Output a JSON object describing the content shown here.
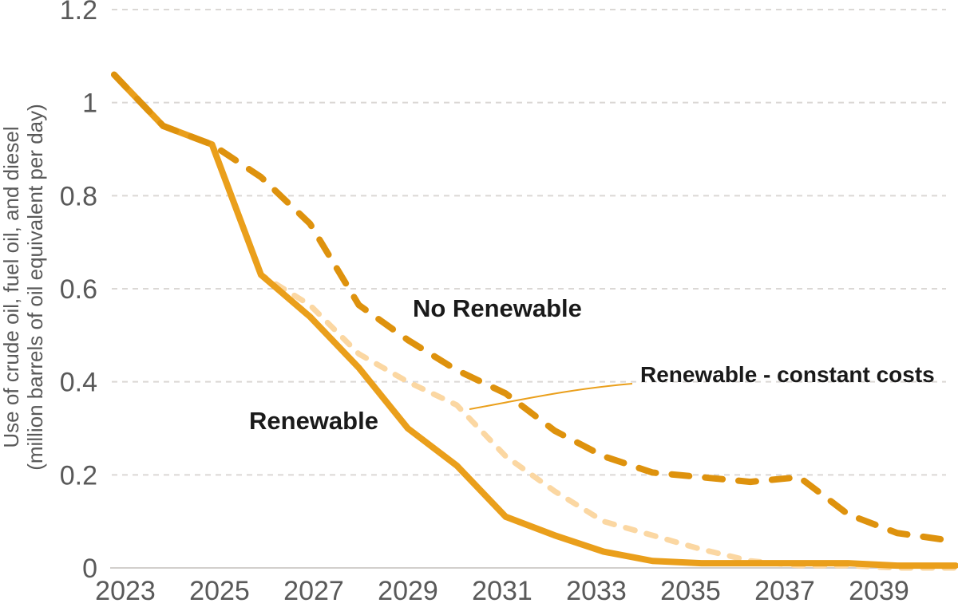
{
  "chart_data": {
    "type": "line",
    "title": "",
    "xlabel": "",
    "ylabel_line1": "Use of crude oil, fuel oil, and diesel",
    "ylabel_line2": "(million barrels of oil equivalent per day)",
    "x": [
      2023,
      2024,
      2025,
      2026,
      2027,
      2028,
      2029,
      2030,
      2031,
      2032,
      2033,
      2034,
      2035,
      2036,
      2037,
      2038,
      2039,
      2040
    ],
    "x_tick_labels": [
      "2023",
      "2025",
      "2027",
      "2029",
      "2031",
      "2033",
      "2035",
      "2037",
      "2039"
    ],
    "y_ticks": [
      {
        "value": 0,
        "label": "0"
      },
      {
        "value": 0.2,
        "label": "0.2"
      },
      {
        "value": 0.4,
        "label": "0.4"
      },
      {
        "value": 0.6,
        "label": "0.6"
      },
      {
        "value": 0.8,
        "label": "0.8"
      },
      {
        "value": 1,
        "label": "1"
      },
      {
        "value": 1.2,
        "label": "1.2"
      }
    ],
    "ylim": [
      0,
      1.2
    ],
    "grid": "horizontal-dashed",
    "legend_position": "inline-annotations",
    "series": [
      {
        "name": "Renewable - constant costs",
        "line_style": "dashed",
        "color": "#FBD7A2",
        "stroke_width": 7,
        "dash": "12 15",
        "values": [
          1.06,
          0.95,
          0.91,
          0.63,
          0.565,
          0.46,
          0.4,
          0.35,
          0.24,
          0.165,
          0.1,
          0.07,
          0.04,
          0.015,
          0.005,
          0.005,
          0,
          0
        ]
      },
      {
        "name": "Renewable",
        "line_style": "solid",
        "color": "#EA9F1B",
        "stroke_width": 8,
        "dash": "",
        "values": [
          1.06,
          0.95,
          0.91,
          0.63,
          0.54,
          0.43,
          0.3,
          0.22,
          0.11,
          0.07,
          0.035,
          0.015,
          0.01,
          0.01,
          0.01,
          0.01,
          0.005,
          0.005
        ]
      },
      {
        "name": "No Renewable",
        "line_style": "dashed",
        "color": "#DE920D",
        "stroke_width": 8,
        "dash": "22 20",
        "values": [
          1.06,
          0.95,
          0.91,
          0.84,
          0.74,
          0.565,
          0.49,
          0.425,
          0.375,
          0.295,
          0.24,
          0.205,
          0.195,
          0.185,
          0.195,
          0.115,
          0.075,
          0.06
        ]
      }
    ],
    "annotations": {
      "no_renewable": "No Renewable",
      "renewable": "Renewable",
      "renewable_constant_costs": "Renewable - constant costs"
    },
    "colors": {
      "grid": "#DBD8D5",
      "axis": "#D2CFCC",
      "tick_text": "#595959",
      "annotation_text": "#1A1A1A",
      "callout_line": "#EA9F1B"
    }
  }
}
